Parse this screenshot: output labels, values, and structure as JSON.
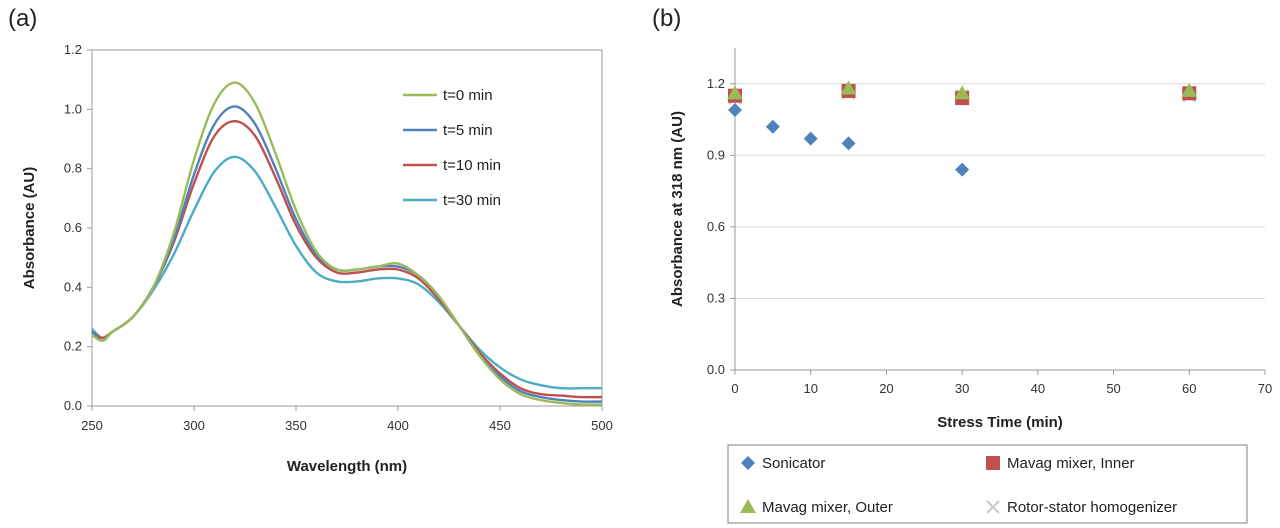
{
  "panels": {
    "a_label": "(a)",
    "b_label": "(b)"
  },
  "chart_data": [
    {
      "type": "line",
      "title": "",
      "xlabel": "Wavelength (nm)",
      "ylabel": "Absorbance (AU)",
      "xlim": [
        250,
        500
      ],
      "ylim": [
        0,
        1.2
      ],
      "xticks": [
        "250",
        "300",
        "350",
        "400",
        "450",
        "500"
      ],
      "yticks": [
        "0.0",
        "0.2",
        "0.4",
        "0.6",
        "0.8",
        "1.0",
        "1.2"
      ],
      "grid": false,
      "legend": "top-right",
      "x": [
        250,
        255,
        260,
        270,
        280,
        290,
        300,
        310,
        320,
        330,
        340,
        350,
        360,
        370,
        380,
        390,
        400,
        410,
        420,
        430,
        440,
        450,
        460,
        470,
        480,
        490,
        500
      ],
      "series": [
        {
          "name": "t=0 min",
          "color": "#9bbb59",
          "values": [
            0.24,
            0.22,
            0.25,
            0.3,
            0.4,
            0.58,
            0.83,
            1.02,
            1.09,
            1.02,
            0.85,
            0.66,
            0.52,
            0.46,
            0.46,
            0.47,
            0.48,
            0.44,
            0.37,
            0.27,
            0.17,
            0.09,
            0.04,
            0.02,
            0.01,
            0.005,
            0.005
          ]
        },
        {
          "name": "t=5 min",
          "color": "#4f81bd",
          "values": [
            0.25,
            0.22,
            0.25,
            0.3,
            0.4,
            0.56,
            0.78,
            0.95,
            1.01,
            0.95,
            0.8,
            0.63,
            0.51,
            0.46,
            0.46,
            0.47,
            0.47,
            0.44,
            0.37,
            0.27,
            0.17,
            0.1,
            0.05,
            0.03,
            0.02,
            0.015,
            0.015
          ]
        },
        {
          "name": "t=10 min",
          "color": "#c0504d",
          "values": [
            0.25,
            0.23,
            0.25,
            0.3,
            0.4,
            0.55,
            0.75,
            0.91,
            0.96,
            0.91,
            0.77,
            0.61,
            0.5,
            0.45,
            0.45,
            0.46,
            0.46,
            0.43,
            0.36,
            0.27,
            0.18,
            0.11,
            0.06,
            0.04,
            0.035,
            0.03,
            0.03
          ]
        },
        {
          "name": "t=30 min",
          "color": "#4bacc6",
          "values": [
            0.26,
            0.23,
            0.25,
            0.3,
            0.39,
            0.51,
            0.66,
            0.79,
            0.84,
            0.79,
            0.67,
            0.54,
            0.45,
            0.42,
            0.42,
            0.43,
            0.43,
            0.41,
            0.35,
            0.27,
            0.19,
            0.13,
            0.09,
            0.07,
            0.06,
            0.06,
            0.06
          ]
        }
      ]
    },
    {
      "type": "scatter",
      "title": "",
      "xlabel": "Stress Time (min)",
      "ylabel": "Absorbance at 318 nm (AU)",
      "xlim": [
        0,
        70
      ],
      "ylim": [
        0,
        1.35
      ],
      "xticks": [
        "0",
        "10",
        "20",
        "30",
        "40",
        "50",
        "60",
        "70"
      ],
      "yticks": [
        "0.0",
        "0.3",
        "0.6",
        "0.9",
        "1.2"
      ],
      "grid": true,
      "legend": "bottom",
      "series": [
        {
          "name": "Sonicator",
          "color": "#4f81bd",
          "marker": "diamond",
          "x": [
            0,
            5,
            10,
            15,
            30
          ],
          "y": [
            1.09,
            1.02,
            0.97,
            0.95,
            0.84
          ]
        },
        {
          "name": "Mavag mixer, Inner",
          "color": "#c0504d",
          "marker": "square",
          "x": [
            0,
            15,
            30,
            60
          ],
          "y": [
            1.15,
            1.17,
            1.14,
            1.16
          ]
        },
        {
          "name": "Mavag mixer, Outer",
          "color": "#9bbb59",
          "marker": "triangle",
          "x": [
            0,
            15,
            30,
            60
          ],
          "y": [
            1.16,
            1.18,
            1.16,
            1.17
          ]
        },
        {
          "name": "Rotor-stator homogenizer",
          "color": "#c8c8c8",
          "marker": "x",
          "x": [
            0,
            15,
            30,
            60
          ],
          "y": [
            1.14,
            1.16,
            1.15,
            1.15
          ]
        }
      ]
    }
  ]
}
